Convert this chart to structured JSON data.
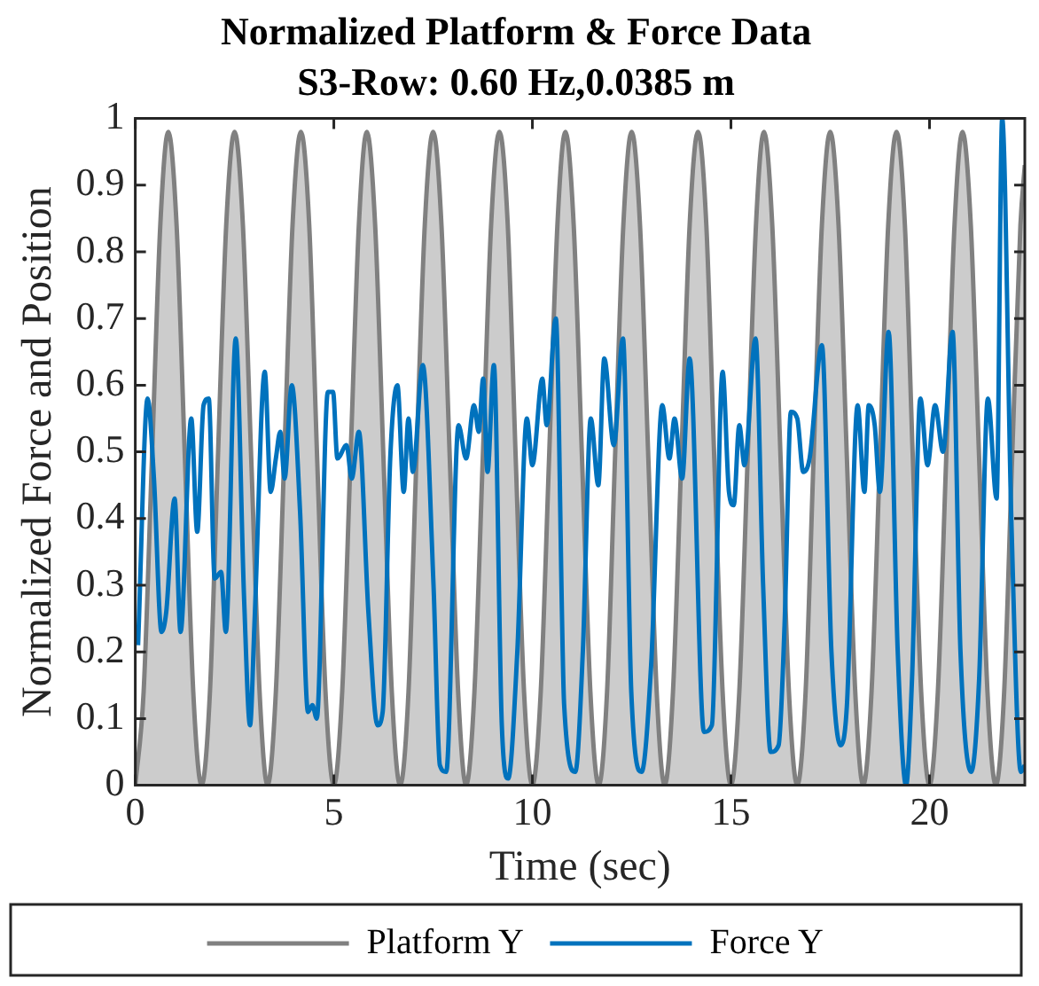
{
  "chart_data": {
    "type": "line",
    "title": "Normalized Platform & Force Data",
    "subtitle": "S3-Row: 0.60 Hz,0.0385 m",
    "xlabel": "Time (sec)",
    "ylabel": "Normalized Force and Position",
    "xlim": [
      0,
      22.4
    ],
    "xticks": [
      0,
      5,
      10,
      15,
      20
    ],
    "ylim": [
      0,
      1
    ],
    "yticks": [
      0,
      0.1,
      0.2,
      0.3,
      0.4,
      0.5,
      0.6,
      0.7,
      0.8,
      0.9,
      1
    ],
    "legend": "bottom",
    "series": [
      {
        "name": "Platform Y",
        "type": "area",
        "color": "#808080",
        "x": [
          0,
          0.21,
          0.42,
          0.63,
          0.83,
          1.04,
          1.25,
          1.46,
          1.67,
          1.88,
          2.08,
          2.29,
          2.5,
          2.71,
          2.92,
          3.13,
          3.33,
          3.54,
          3.75,
          3.96,
          4.17,
          4.38,
          4.58,
          4.79,
          5,
          5.21,
          5.42,
          5.63,
          5.83,
          6.04,
          6.25,
          6.46,
          6.67,
          6.88,
          7.08,
          7.29,
          7.5,
          7.71,
          7.92,
          8.13,
          8.33,
          8.54,
          8.75,
          8.96,
          9.17,
          9.38,
          9.58,
          9.79,
          10,
          10.21,
          10.42,
          10.63,
          10.83,
          11.04,
          11.25,
          11.46,
          11.67,
          11.88,
          12.08,
          12.29,
          12.5,
          12.71,
          12.92,
          13.13,
          13.33,
          13.54,
          13.75,
          13.96,
          14.17,
          14.38,
          14.58,
          14.79,
          15,
          15.21,
          15.42,
          15.63,
          15.83,
          16.04,
          16.25,
          16.46,
          16.67,
          16.88,
          17.08,
          17.29,
          17.5,
          17.71,
          17.92,
          18.13,
          18.33,
          18.54,
          18.75,
          18.96,
          19.17,
          19.38,
          19.58,
          19.79,
          20,
          20.21,
          20.42,
          20.63,
          20.83,
          21.04,
          21.25,
          21.46,
          21.67,
          21.88,
          22.08,
          22.29,
          22.4
        ],
        "values": [
          0,
          0.14,
          0.49,
          0.84,
          0.98,
          0.84,
          0.49,
          0.14,
          0,
          0.14,
          0.49,
          0.84,
          0.98,
          0.84,
          0.49,
          0.14,
          0,
          0.14,
          0.49,
          0.84,
          0.98,
          0.84,
          0.49,
          0.14,
          0,
          0.14,
          0.49,
          0.84,
          0.98,
          0.84,
          0.49,
          0.14,
          0,
          0.14,
          0.49,
          0.84,
          0.98,
          0.84,
          0.49,
          0.14,
          0,
          0.14,
          0.49,
          0.84,
          0.98,
          0.84,
          0.49,
          0.14,
          0,
          0.14,
          0.49,
          0.84,
          0.98,
          0.84,
          0.49,
          0.14,
          0,
          0.14,
          0.49,
          0.84,
          0.98,
          0.84,
          0.49,
          0.14,
          0,
          0.14,
          0.49,
          0.84,
          0.98,
          0.84,
          0.49,
          0.14,
          0,
          0.14,
          0.49,
          0.84,
          0.98,
          0.84,
          0.49,
          0.14,
          0,
          0.14,
          0.49,
          0.84,
          0.98,
          0.84,
          0.49,
          0.14,
          0,
          0.14,
          0.49,
          0.84,
          0.98,
          0.84,
          0.49,
          0.14,
          0,
          0.14,
          0.49,
          0.84,
          0.98,
          0.84,
          0.49,
          0.14,
          0,
          0.14,
          0.49,
          0.84,
          0.93
        ]
      },
      {
        "name": "Force Y",
        "type": "line",
        "color": "#0072bd",
        "x": [
          0.07,
          0.31,
          0.47,
          0.66,
          0.78,
          0.99,
          1.14,
          1.41,
          1.56,
          1.72,
          1.85,
          2.0,
          2.16,
          2.28,
          2.53,
          2.74,
          2.89,
          3.0,
          3.26,
          3.41,
          3.54,
          3.65,
          3.76,
          3.94,
          4.15,
          4.35,
          4.46,
          4.57,
          4.85,
          4.98,
          5.09,
          5.32,
          5.45,
          5.63,
          5.87,
          6.1,
          6.23,
          6.42,
          6.6,
          6.76,
          6.88,
          6.99,
          7.24,
          7.51,
          7.67,
          7.83,
          8.14,
          8.33,
          8.53,
          8.65,
          8.76,
          8.87,
          9.03,
          9.23,
          9.39,
          9.62,
          9.86,
          10.0,
          10.25,
          10.36,
          10.59,
          10.8,
          11.08,
          11.27,
          11.47,
          11.66,
          11.81,
          12.05,
          12.28,
          12.49,
          12.75,
          12.99,
          13.27,
          13.45,
          13.58,
          13.77,
          13.96,
          14.32,
          14.52,
          14.79,
          14.95,
          15.07,
          15.21,
          15.34,
          15.62,
          15.81,
          16.0,
          16.2,
          16.35,
          16.51,
          16.67,
          16.82,
          16.98,
          17.29,
          17.53,
          17.76,
          17.92,
          18.19,
          18.36,
          18.47,
          18.62,
          18.75,
          18.97,
          19.2,
          19.41,
          19.56,
          19.77,
          19.95,
          20.14,
          20.34,
          20.58,
          20.78,
          21.05,
          21.25,
          21.47,
          21.69,
          21.83,
          22.06,
          22.3,
          22.4
        ],
        "values": [
          0.21,
          0.58,
          0.46,
          0.23,
          0.26,
          0.43,
          0.23,
          0.55,
          0.38,
          0.57,
          0.58,
          0.31,
          0.32,
          0.23,
          0.67,
          0.28,
          0.09,
          0.24,
          0.62,
          0.44,
          0.49,
          0.53,
          0.46,
          0.6,
          0.41,
          0.11,
          0.12,
          0.1,
          0.59,
          0.59,
          0.49,
          0.51,
          0.46,
          0.53,
          0.26,
          0.09,
          0.11,
          0.49,
          0.6,
          0.44,
          0.55,
          0.47,
          0.63,
          0.3,
          0.03,
          0.02,
          0.54,
          0.49,
          0.57,
          0.53,
          0.61,
          0.47,
          0.63,
          0.09,
          0.01,
          0.2,
          0.55,
          0.48,
          0.61,
          0.54,
          0.7,
          0.12,
          0.02,
          0.2,
          0.55,
          0.45,
          0.64,
          0.51,
          0.67,
          0.14,
          0.02,
          0.18,
          0.57,
          0.49,
          0.55,
          0.46,
          0.64,
          0.08,
          0.09,
          0.62,
          0.44,
          0.42,
          0.54,
          0.48,
          0.67,
          0.3,
          0.05,
          0.06,
          0.24,
          0.56,
          0.55,
          0.47,
          0.49,
          0.66,
          0.2,
          0.06,
          0.12,
          0.57,
          0.44,
          0.57,
          0.54,
          0.44,
          0.68,
          0.2,
          0.0,
          0.16,
          0.58,
          0.48,
          0.57,
          0.5,
          0.68,
          0.2,
          0.02,
          0.16,
          0.58,
          0.43,
          1.0,
          0.4,
          0.02,
          0.03
        ]
      }
    ]
  }
}
